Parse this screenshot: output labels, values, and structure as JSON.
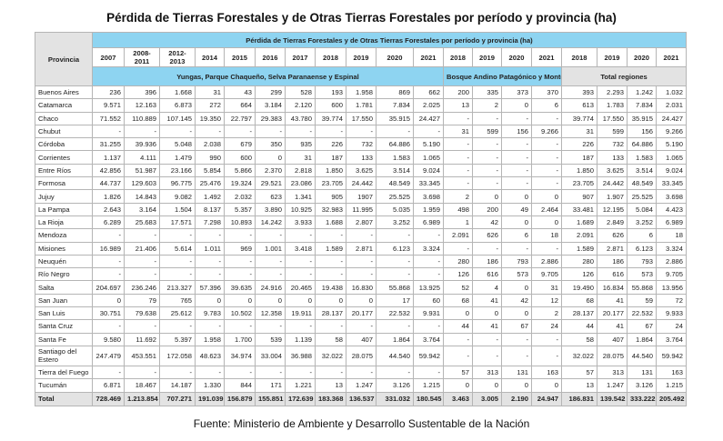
{
  "title": "Pérdida de Tierras Forestales y de Otras Tierras Forestales por período y provincia (ha)",
  "table": {
    "province_header": "Provincia",
    "super_header": "Pérdida de Tierras Forestales y de Otras Tierras Forestales por período y provincia (ha)",
    "years": [
      "2007",
      "2008-2011",
      "2012-2013",
      "2014",
      "2015",
      "2016",
      "2017",
      "2018",
      "2019",
      "2020",
      "2021",
      "2018",
      "2019",
      "2020",
      "2021",
      "2018",
      "2019",
      "2020",
      "2021"
    ],
    "groups": [
      "Yungas, Parque Chaqueño, Selva Paranaense y Espinal",
      "Bosque Andino Patagónico y Monte",
      "Total regiones"
    ],
    "rows": [
      {
        "name": "Buenos Aires",
        "v": [
          "236",
          "396",
          "1.668",
          "31",
          "43",
          "299",
          "528",
          "193",
          "1.958",
          "869",
          "662",
          "200",
          "335",
          "373",
          "370",
          "393",
          "2.293",
          "1.242",
          "1.032"
        ]
      },
      {
        "name": "Catamarca",
        "v": [
          "9.571",
          "12.163",
          "6.873",
          "272",
          "664",
          "3.184",
          "2.120",
          "600",
          "1.781",
          "7.834",
          "2.025",
          "13",
          "2",
          "0",
          "6",
          "613",
          "1.783",
          "7.834",
          "2.031"
        ]
      },
      {
        "name": "Chaco",
        "v": [
          "71.552",
          "110.889",
          "107.145",
          "19.350",
          "22.797",
          "29.383",
          "43.780",
          "39.774",
          "17.550",
          "35.915",
          "24.427",
          "-",
          "-",
          "-",
          "-",
          "39.774",
          "17.550",
          "35.915",
          "24.427"
        ]
      },
      {
        "name": "Chubut",
        "v": [
          "-",
          "-",
          "-",
          "-",
          "-",
          "-",
          "-",
          "-",
          "-",
          "-",
          "-",
          "31",
          "599",
          "156",
          "9.266",
          "31",
          "599",
          "156",
          "9.266"
        ]
      },
      {
        "name": "Córdoba",
        "v": [
          "31.255",
          "39.936",
          "5.048",
          "2.038",
          "679",
          "350",
          "935",
          "226",
          "732",
          "64.886",
          "5.190",
          "-",
          "-",
          "-",
          "-",
          "226",
          "732",
          "64.886",
          "5.190"
        ]
      },
      {
        "name": "Corrientes",
        "v": [
          "1.137",
          "4.111",
          "1.479",
          "990",
          "600",
          "0",
          "31",
          "187",
          "133",
          "1.583",
          "1.065",
          "-",
          "-",
          "-",
          "-",
          "187",
          "133",
          "1.583",
          "1.065"
        ]
      },
      {
        "name": "Entre Ríos",
        "v": [
          "42.856",
          "51.987",
          "23.166",
          "5.854",
          "5.866",
          "2.370",
          "2.818",
          "1.850",
          "3.625",
          "3.514",
          "9.024",
          "-",
          "-",
          "-",
          "-",
          "1.850",
          "3.625",
          "3.514",
          "9.024"
        ]
      },
      {
        "name": "Formosa",
        "v": [
          "44.737",
          "129.603",
          "96.775",
          "25.476",
          "19.324",
          "29.521",
          "23.086",
          "23.705",
          "24.442",
          "48.549",
          "33.345",
          "-",
          "-",
          "-",
          "-",
          "23.705",
          "24.442",
          "48.549",
          "33.345"
        ]
      },
      {
        "name": "Jujuy",
        "v": [
          "1.826",
          "14.843",
          "9.082",
          "1.492",
          "2.032",
          "623",
          "1.341",
          "905",
          "1907",
          "25.525",
          "3.698",
          "2",
          "0",
          "0",
          "0",
          "907",
          "1.907",
          "25.525",
          "3.698"
        ]
      },
      {
        "name": "La Pampa",
        "v": [
          "2.643",
          "3.164",
          "1.504",
          "8.137",
          "5.357",
          "3.890",
          "10.925",
          "32.983",
          "11.995",
          "5.035",
          "1.959",
          "498",
          "200",
          "49",
          "2.464",
          "33.481",
          "12.195",
          "5.084",
          "4.423"
        ]
      },
      {
        "name": "La Rioja",
        "v": [
          "6.289",
          "25.683",
          "17.571",
          "7.298",
          "10.893",
          "14.242",
          "3.933",
          "1.688",
          "2.807",
          "3.252",
          "6.989",
          "1",
          "42",
          "0",
          "0",
          "1.689",
          "2.849",
          "3.252",
          "6.989"
        ]
      },
      {
        "name": "Mendoza",
        "v": [
          "-",
          "-",
          "-",
          "-",
          "-",
          "-",
          "-",
          "-",
          "-",
          "-",
          "-",
          "2.091",
          "626",
          "6",
          "18",
          "2.091",
          "626",
          "6",
          "18"
        ]
      },
      {
        "name": "Misiones",
        "v": [
          "16.989",
          "21.406",
          "5.614",
          "1.011",
          "969",
          "1.001",
          "3.418",
          "1.589",
          "2.871",
          "6.123",
          "3.324",
          "-",
          "-",
          "-",
          "-",
          "1.589",
          "2.871",
          "6.123",
          "3.324"
        ]
      },
      {
        "name": "Neuquén",
        "v": [
          "-",
          "-",
          "-",
          "-",
          "-",
          "-",
          "-",
          "-",
          "-",
          "-",
          "-",
          "280",
          "186",
          "793",
          "2.886",
          "280",
          "186",
          "793",
          "2.886"
        ]
      },
      {
        "name": "Río Negro",
        "v": [
          "-",
          "-",
          "-",
          "-",
          "-",
          "-",
          "-",
          "-",
          "-",
          "-",
          "-",
          "126",
          "616",
          "573",
          "9.705",
          "126",
          "616",
          "573",
          "9.705"
        ]
      },
      {
        "name": "Salta",
        "v": [
          "204.697",
          "236.246",
          "213.327",
          "57.396",
          "39.635",
          "24.916",
          "20.465",
          "19.438",
          "16.830",
          "55.868",
          "13.925",
          "52",
          "4",
          "0",
          "31",
          "19.490",
          "16.834",
          "55.868",
          "13.956"
        ]
      },
      {
        "name": "San Juan",
        "v": [
          "0",
          "79",
          "765",
          "0",
          "0",
          "0",
          "0",
          "0",
          "0",
          "17",
          "60",
          "68",
          "41",
          "42",
          "12",
          "68",
          "41",
          "59",
          "72"
        ]
      },
      {
        "name": "San Luis",
        "v": [
          "30.751",
          "79.638",
          "25.612",
          "9.783",
          "10.502",
          "12.358",
          "19.911",
          "28.137",
          "20.177",
          "22.532",
          "9.931",
          "0",
          "0",
          "0",
          "2",
          "28.137",
          "20.177",
          "22.532",
          "9.933"
        ]
      },
      {
        "name": "Santa Cruz",
        "v": [
          "-",
          "-",
          "-",
          "-",
          "-",
          "-",
          "-",
          "-",
          "-",
          "-",
          "-",
          "44",
          "41",
          "67",
          "24",
          "44",
          "41",
          "67",
          "24"
        ]
      },
      {
        "name": "Santa Fe",
        "v": [
          "9.580",
          "11.692",
          "5.397",
          "1.958",
          "1.700",
          "539",
          "1.139",
          "58",
          "407",
          "1.864",
          "3.764",
          "-",
          "-",
          "-",
          "-",
          "58",
          "407",
          "1.864",
          "3.764"
        ]
      },
      {
        "name": "Santiago del Estero",
        "v": [
          "247.479",
          "453.551",
          "172.058",
          "48.623",
          "34.974",
          "33.004",
          "36.988",
          "32.022",
          "28.075",
          "44.540",
          "59.942",
          "-",
          "-",
          "-",
          "-",
          "32.022",
          "28.075",
          "44.540",
          "59.942"
        ]
      },
      {
        "name": "Tierra del Fuego",
        "v": [
          "-",
          "-",
          "-",
          "-",
          "-",
          "-",
          "-",
          "-",
          "-",
          "-",
          "-",
          "57",
          "313",
          "131",
          "163",
          "57",
          "313",
          "131",
          "163"
        ]
      },
      {
        "name": "Tucumán",
        "v": [
          "6.871",
          "18.467",
          "14.187",
          "1.330",
          "844",
          "171",
          "1.221",
          "13",
          "1.247",
          "3.126",
          "1.215",
          "0",
          "0",
          "0",
          "0",
          "13",
          "1.247",
          "3.126",
          "1.215"
        ]
      }
    ],
    "total": {
      "name": "Total",
      "v": [
        "728.469",
        "1.213.854",
        "707.271",
        "191.039",
        "156.879",
        "155.851",
        "172.639",
        "183.368",
        "136.537",
        "331.032",
        "180.545",
        "3.463",
        "3.005",
        "2.190",
        "24.947",
        "186.831",
        "139.542",
        "333.222",
        "205.492"
      ]
    }
  },
  "footer": "Fuente: Ministerio de Ambiente y Desarrollo Sustentable de la Nación",
  "colors": {
    "header_blue": "#8ed4f1",
    "header_grey": "#e3e3e3"
  }
}
